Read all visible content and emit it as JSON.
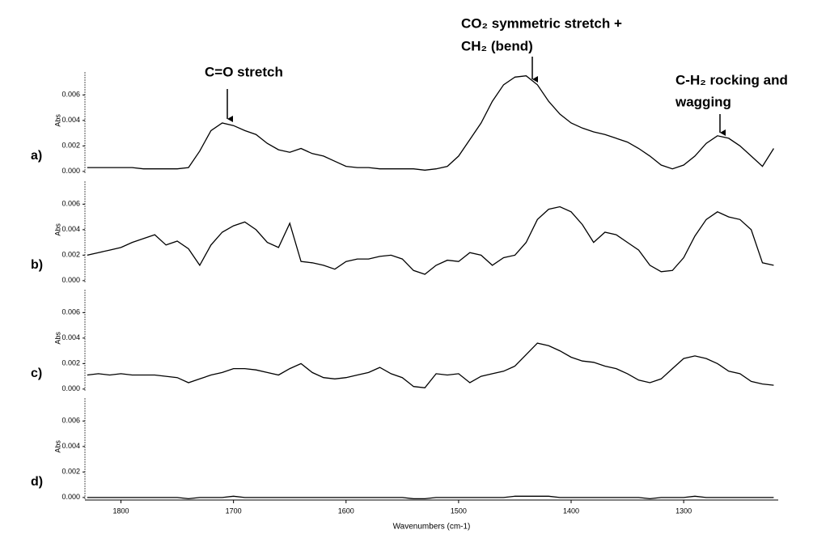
{
  "chart_data": [
    {
      "type": "line",
      "panel_label": "a)",
      "ylabel": "Abs",
      "xlim": [
        1832,
        1216
      ],
      "ylim": [
        -0.0002,
        0.0078
      ],
      "yticks": [
        {
          "value": 0,
          "label": "0.000"
        },
        {
          "value": 0.002,
          "label": "0.002"
        },
        {
          "value": 0.004,
          "label": "0.004"
        },
        {
          "value": 0.006,
          "label": "0.006"
        }
      ],
      "x": [
        1830,
        1820,
        1810,
        1800,
        1790,
        1780,
        1770,
        1760,
        1750,
        1740,
        1730,
        1720,
        1710,
        1700,
        1690,
        1680,
        1670,
        1660,
        1650,
        1640,
        1630,
        1620,
        1610,
        1600,
        1590,
        1580,
        1570,
        1560,
        1550,
        1540,
        1530,
        1520,
        1510,
        1500,
        1490,
        1480,
        1470,
        1460,
        1450,
        1440,
        1430,
        1420,
        1410,
        1400,
        1390,
        1380,
        1370,
        1360,
        1350,
        1340,
        1330,
        1320,
        1310,
        1300,
        1290,
        1280,
        1270,
        1260,
        1250,
        1240,
        1230,
        1220
      ],
      "series": [
        {
          "color": "#000000",
          "values": [
            0.0003,
            0.0003,
            0.0003,
            0.0003,
            0.0003,
            0.0002,
            0.0002,
            0.0002,
            0.0002,
            0.0003,
            0.0016,
            0.0032,
            0.0038,
            0.0036,
            0.0032,
            0.0029,
            0.0022,
            0.0017,
            0.0015,
            0.0018,
            0.0014,
            0.0012,
            0.0008,
            0.0004,
            0.0003,
            0.0003,
            0.0002,
            0.0002,
            0.0002,
            0.0002,
            0.0001,
            0.0002,
            0.0004,
            0.0012,
            0.0025,
            0.0038,
            0.0055,
            0.0068,
            0.0074,
            0.0075,
            0.0068,
            0.0055,
            0.0045,
            0.0038,
            0.0034,
            0.0031,
            0.0029,
            0.0026,
            0.0023,
            0.0018,
            0.0012,
            0.0005,
            0.0002,
            0.0005,
            0.0012,
            0.0022,
            0.0028,
            0.0026,
            0.002,
            0.0012,
            0.0004,
            0.0018
          ]
        }
      ],
      "annotations": [
        "C=O stretch",
        "CO₂ symmetric stretch +",
        "CH₂ (bend)",
        "C-H₂ rocking and",
        "wagging"
      ]
    },
    {
      "type": "line",
      "panel_label": "b)",
      "ylabel": "Abs",
      "xlim": [
        1832,
        1216
      ],
      "ylim": [
        -0.0002,
        0.0078
      ],
      "yticks": [
        {
          "value": 0,
          "label": "0.000"
        },
        {
          "value": 0.002,
          "label": "0.002"
        },
        {
          "value": 0.004,
          "label": "0.004"
        },
        {
          "value": 0.006,
          "label": "0.006"
        }
      ],
      "x": [
        1830,
        1820,
        1810,
        1800,
        1790,
        1780,
        1770,
        1760,
        1750,
        1740,
        1730,
        1720,
        1710,
        1700,
        1690,
        1680,
        1670,
        1660,
        1650,
        1640,
        1630,
        1620,
        1610,
        1600,
        1590,
        1580,
        1570,
        1560,
        1550,
        1540,
        1530,
        1520,
        1510,
        1500,
        1490,
        1480,
        1470,
        1460,
        1450,
        1440,
        1430,
        1420,
        1410,
        1400,
        1390,
        1380,
        1370,
        1360,
        1350,
        1340,
        1330,
        1320,
        1310,
        1300,
        1290,
        1280,
        1270,
        1260,
        1250,
        1240,
        1230,
        1220
      ],
      "series": [
        {
          "color": "#000000",
          "values": [
            0.002,
            0.0022,
            0.0024,
            0.0026,
            0.003,
            0.0033,
            0.0036,
            0.0028,
            0.0031,
            0.0025,
            0.0012,
            0.0028,
            0.0038,
            0.0043,
            0.0046,
            0.004,
            0.003,
            0.0026,
            0.0045,
            0.0015,
            0.0014,
            0.0012,
            0.0009,
            0.0015,
            0.0017,
            0.0017,
            0.0019,
            0.002,
            0.0017,
            0.0008,
            0.0005,
            0.0012,
            0.0016,
            0.0015,
            0.0022,
            0.002,
            0.0012,
            0.0018,
            0.002,
            0.003,
            0.0048,
            0.0056,
            0.0058,
            0.0054,
            0.0044,
            0.003,
            0.0038,
            0.0036,
            0.003,
            0.0024,
            0.0012,
            0.0007,
            0.0008,
            0.0018,
            0.0035,
            0.0048,
            0.0054,
            0.005,
            0.0048,
            0.004,
            0.0014,
            0.0012
          ]
        }
      ]
    },
    {
      "type": "line",
      "panel_label": "c)",
      "ylabel": "Abs",
      "xlim": [
        1832,
        1216
      ],
      "ylim": [
        -0.0002,
        0.0078
      ],
      "yticks": [
        {
          "value": 0,
          "label": "0.000"
        },
        {
          "value": 0.002,
          "label": "0.002"
        },
        {
          "value": 0.004,
          "label": "0.004"
        },
        {
          "value": 0.006,
          "label": "0.006"
        }
      ],
      "x": [
        1830,
        1820,
        1810,
        1800,
        1790,
        1780,
        1770,
        1760,
        1750,
        1740,
        1730,
        1720,
        1710,
        1700,
        1690,
        1680,
        1670,
        1660,
        1650,
        1640,
        1630,
        1620,
        1610,
        1600,
        1590,
        1580,
        1570,
        1560,
        1550,
        1540,
        1530,
        1520,
        1510,
        1500,
        1490,
        1480,
        1470,
        1460,
        1450,
        1440,
        1430,
        1420,
        1410,
        1400,
        1390,
        1380,
        1370,
        1360,
        1350,
        1340,
        1330,
        1320,
        1310,
        1300,
        1290,
        1280,
        1270,
        1260,
        1250,
        1240,
        1230,
        1220
      ],
      "series": [
        {
          "color": "#000000",
          "values": [
            0.0011,
            0.0012,
            0.0011,
            0.0012,
            0.0011,
            0.0011,
            0.0011,
            0.001,
            0.0009,
            0.0005,
            0.0008,
            0.0011,
            0.0013,
            0.0016,
            0.0016,
            0.0015,
            0.0013,
            0.0011,
            0.0016,
            0.002,
            0.0013,
            0.0009,
            0.0008,
            0.0009,
            0.0011,
            0.0013,
            0.0017,
            0.0012,
            0.0009,
            0.0002,
            0.0001,
            0.0012,
            0.0011,
            0.0012,
            0.0005,
            0.001,
            0.0012,
            0.0014,
            0.0018,
            0.0027,
            0.0036,
            0.0034,
            0.003,
            0.0025,
            0.0022,
            0.0021,
            0.0018,
            0.0016,
            0.0012,
            0.0007,
            0.0005,
            0.0008,
            0.0016,
            0.0024,
            0.0026,
            0.0024,
            0.002,
            0.0014,
            0.0012,
            0.0006,
            0.0004,
            0.0003
          ]
        }
      ]
    },
    {
      "type": "line",
      "panel_label": "d)",
      "ylabel": "Abs",
      "xlim": [
        1832,
        1216
      ],
      "ylim": [
        -0.0002,
        0.0078
      ],
      "yticks": [
        {
          "value": 0,
          "label": "0.000"
        },
        {
          "value": 0.002,
          "label": "0.002"
        },
        {
          "value": 0.004,
          "label": "0.004"
        },
        {
          "value": 0.006,
          "label": "0.006"
        }
      ],
      "xticks": [
        1800,
        1700,
        1600,
        1500,
        1400,
        1300
      ],
      "xlabel": "Wavenumbers (cm-1)",
      "x": [
        1830,
        1820,
        1810,
        1800,
        1790,
        1780,
        1770,
        1760,
        1750,
        1740,
        1730,
        1720,
        1710,
        1700,
        1690,
        1680,
        1670,
        1660,
        1650,
        1640,
        1630,
        1620,
        1610,
        1600,
        1590,
        1580,
        1570,
        1560,
        1550,
        1540,
        1530,
        1520,
        1510,
        1500,
        1490,
        1480,
        1470,
        1460,
        1450,
        1440,
        1430,
        1420,
        1410,
        1400,
        1390,
        1380,
        1370,
        1360,
        1350,
        1340,
        1330,
        1320,
        1310,
        1300,
        1290,
        1280,
        1270,
        1260,
        1250,
        1240,
        1230,
        1220
      ],
      "series": [
        {
          "color": "#000000",
          "values": [
            0,
            0,
            0,
            0,
            0,
            0,
            0,
            0,
            0,
            -0.0001,
            0,
            0,
            0,
            0.0001,
            0,
            0,
            0,
            0,
            0,
            0,
            0,
            0,
            0,
            0,
            0,
            0,
            0,
            0,
            0,
            -0.0001,
            -0.0001,
            0,
            0,
            0,
            0,
            0,
            0,
            0,
            0.0001,
            0.0001,
            0.0001,
            0.0001,
            0,
            0,
            0,
            0,
            0,
            0,
            0,
            0,
            -0.0001,
            0,
            0,
            0,
            0.0001,
            0,
            0,
            0,
            0,
            0,
            0,
            0
          ]
        }
      ]
    }
  ]
}
